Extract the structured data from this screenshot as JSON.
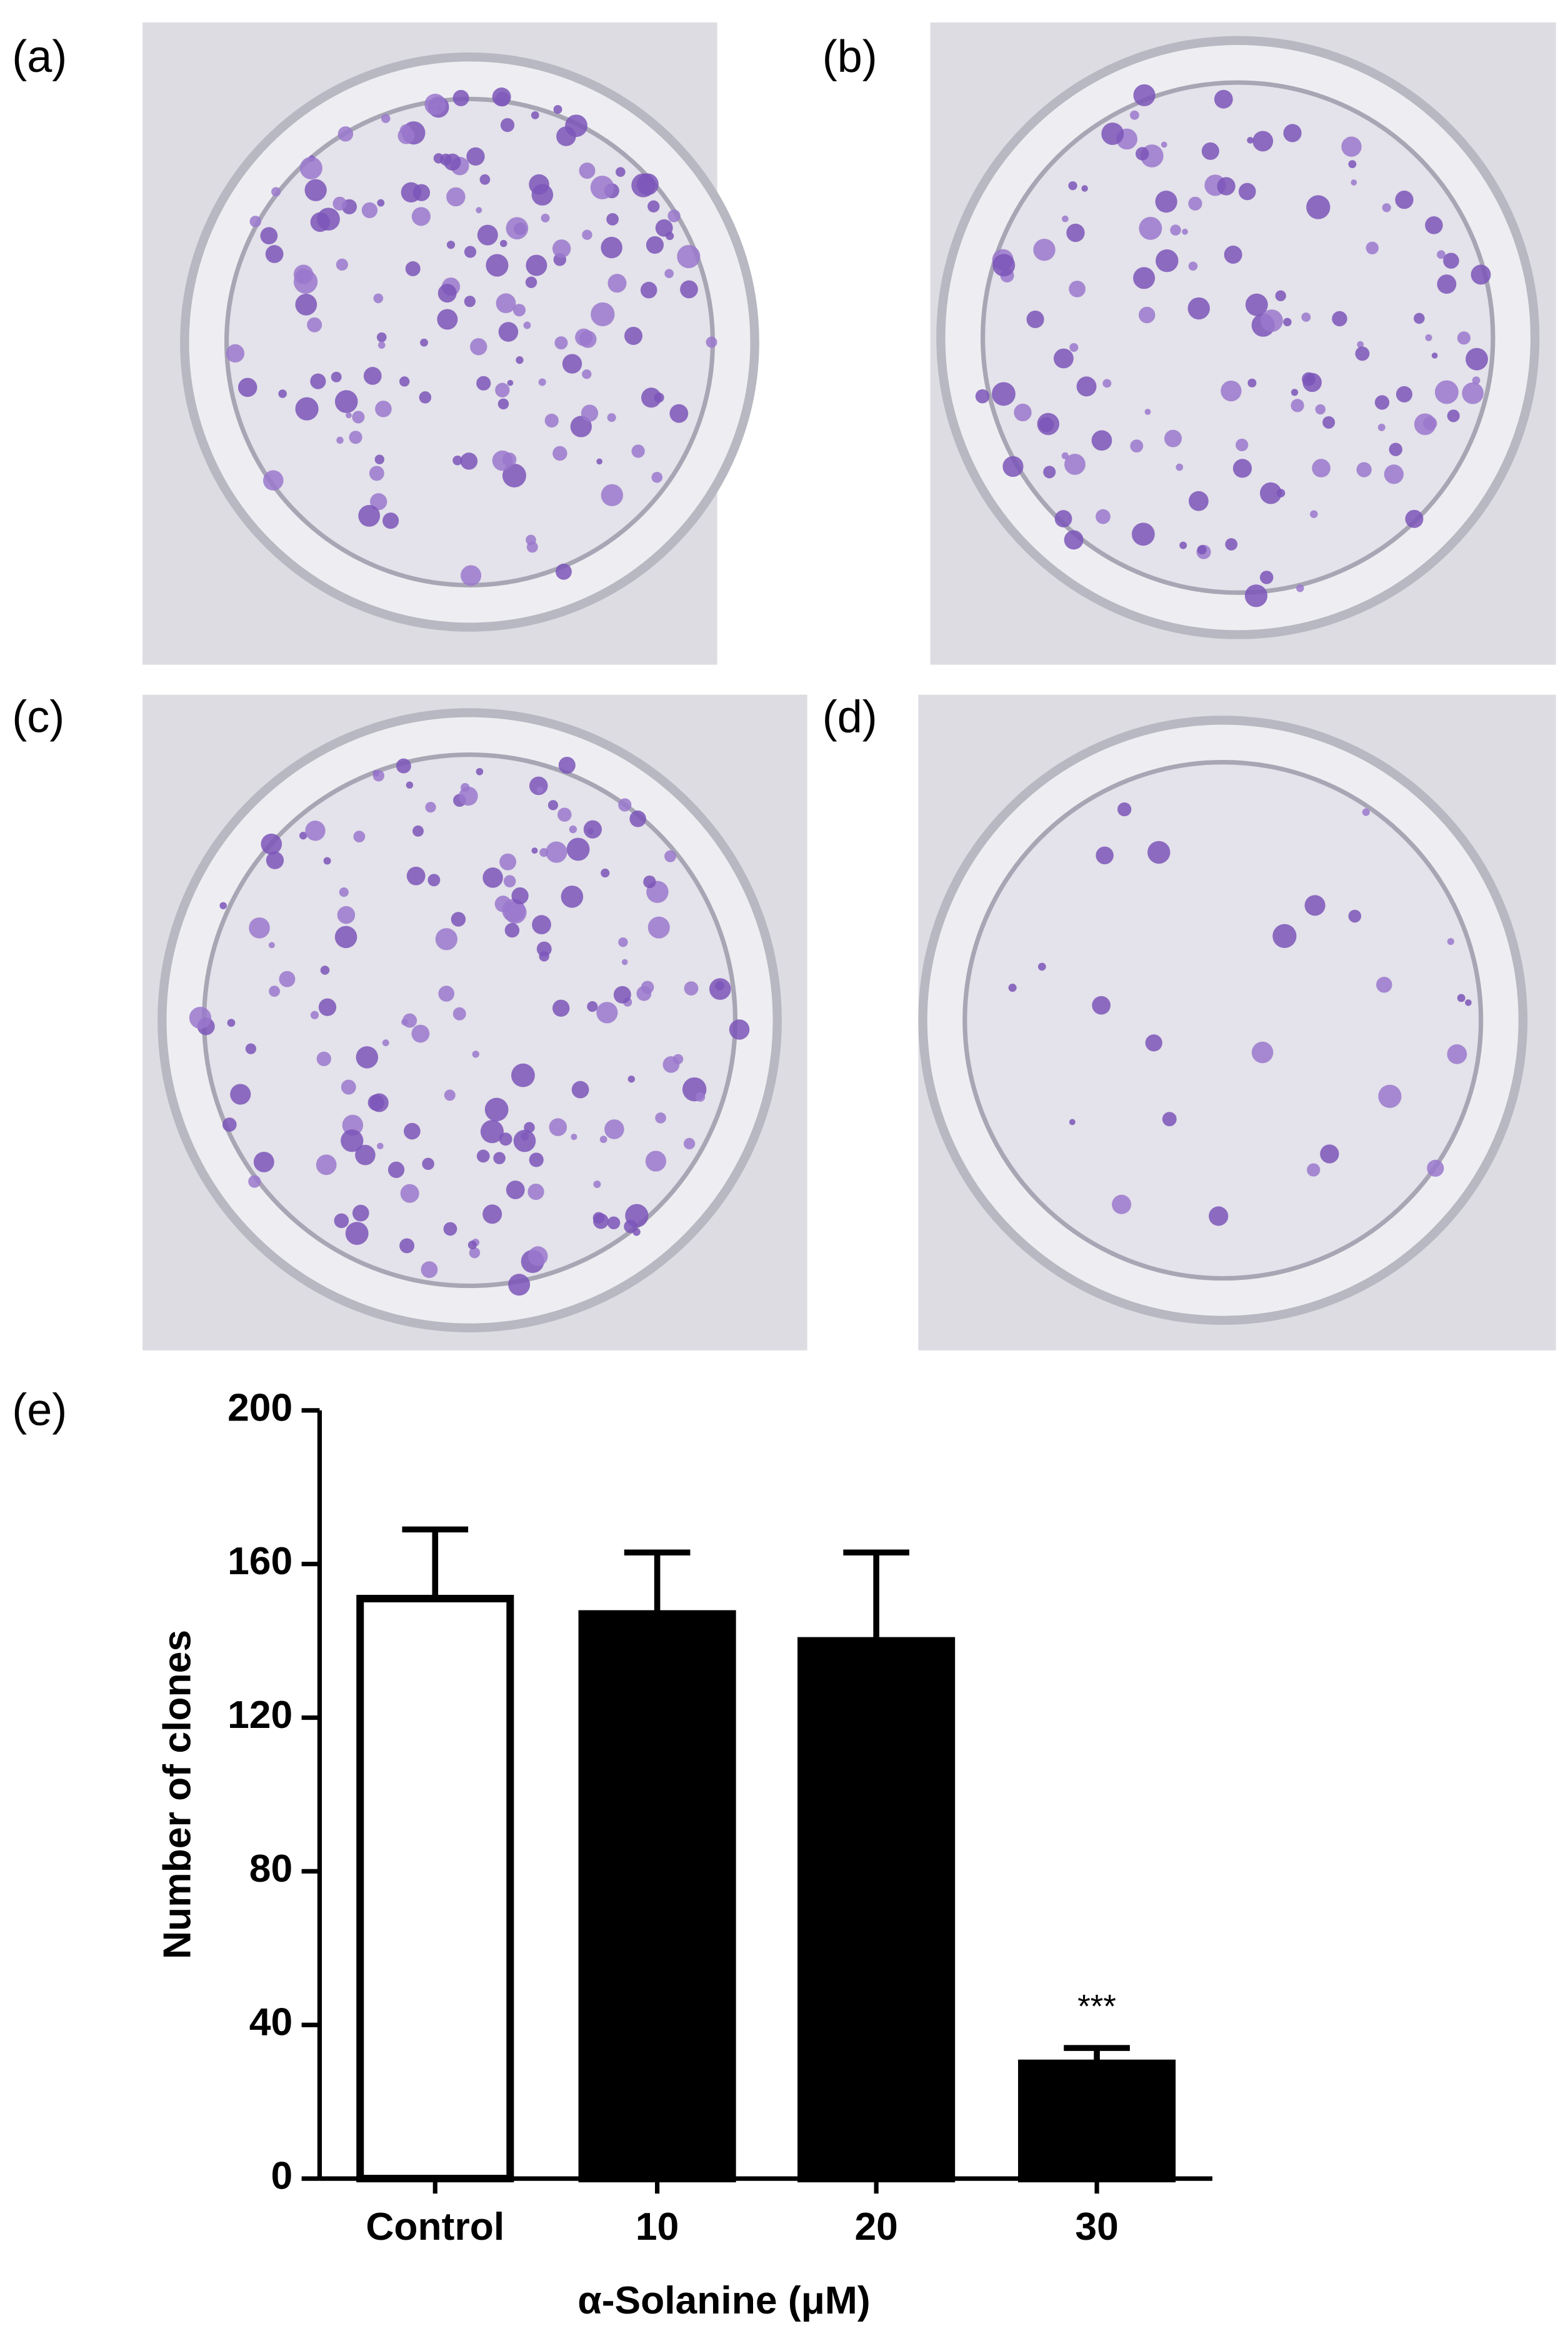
{
  "panel_labels": [
    "(a)",
    "(b)",
    "(c)",
    "(d)",
    "(e)"
  ],
  "chart_data": {
    "type": "bar",
    "categories": [
      "Control",
      "10",
      "20",
      "30"
    ],
    "values": [
      151,
      147,
      140,
      30
    ],
    "errors": [
      18,
      16,
      23,
      4
    ],
    "colors": [
      "#ffffff",
      "#000000",
      "#000000",
      "#000000"
    ],
    "significance": [
      null,
      null,
      null,
      "***"
    ],
    "ylim": [
      0,
      200
    ],
    "yticks": [
      0,
      40,
      80,
      120,
      160,
      200
    ],
    "ylabel": "Number of clones",
    "xlabel": "α-Solanine (μM)"
  }
}
